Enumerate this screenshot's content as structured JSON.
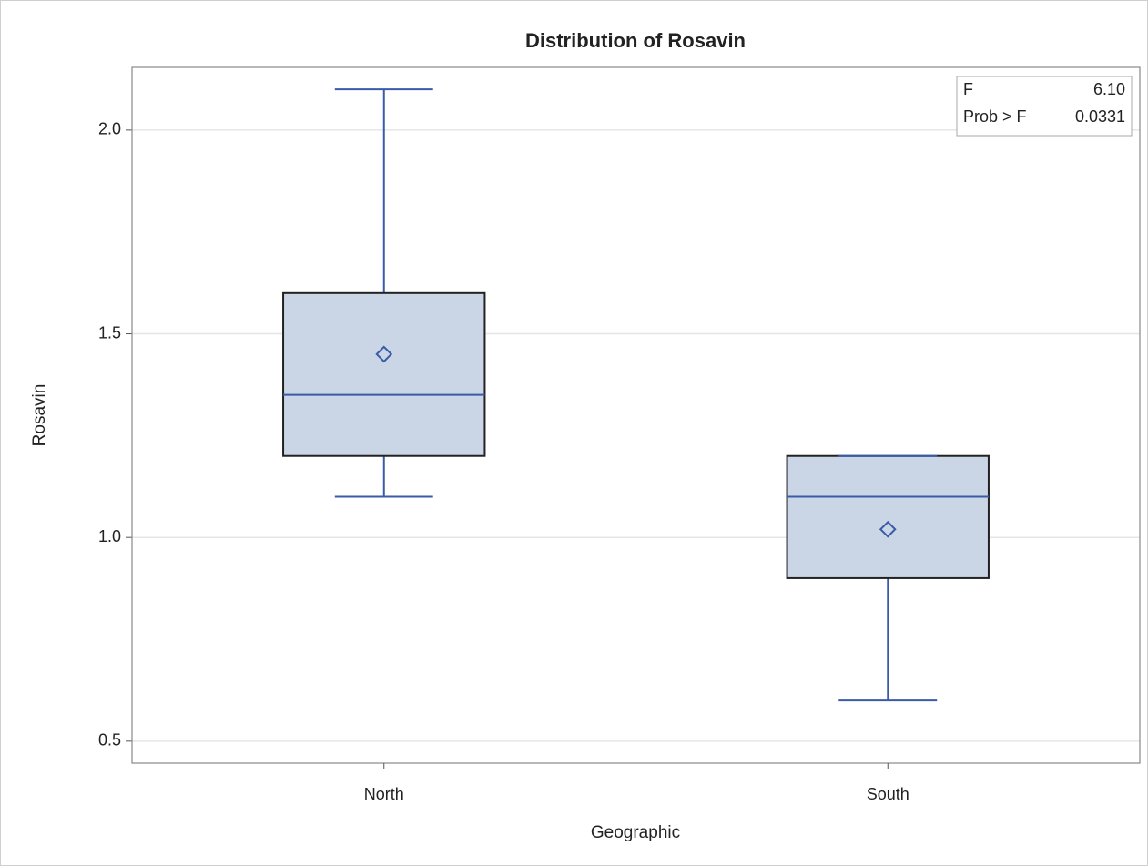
{
  "chart_data": {
    "type": "box",
    "title": "Distribution of Rosavin",
    "x_label": "Geographic",
    "y_label": "Rosavin",
    "categories": [
      "North",
      "South"
    ],
    "min": [
      1.1,
      0.6
    ],
    "q1": [
      1.2,
      0.9
    ],
    "median": [
      1.35,
      1.1
    ],
    "q3": [
      1.6,
      1.2
    ],
    "max": [
      2.1,
      1.2
    ],
    "mean": [
      1.45,
      1.02
    ],
    "color": "#3a5ba8",
    "box_fill": "#cad5e5",
    "ylim": [
      0.446,
      2.154
    ],
    "yticks": [
      0.5,
      {
        "value": 1,
        "label": "1.0"
      },
      1.5,
      {
        "value": 2,
        "label": "2.0"
      }
    ],
    "grid": true,
    "inset": [
      {
        "label": "F",
        "value": "6.10"
      },
      {
        "label": "Prob > F",
        "value": "0.0331"
      }
    ]
  }
}
